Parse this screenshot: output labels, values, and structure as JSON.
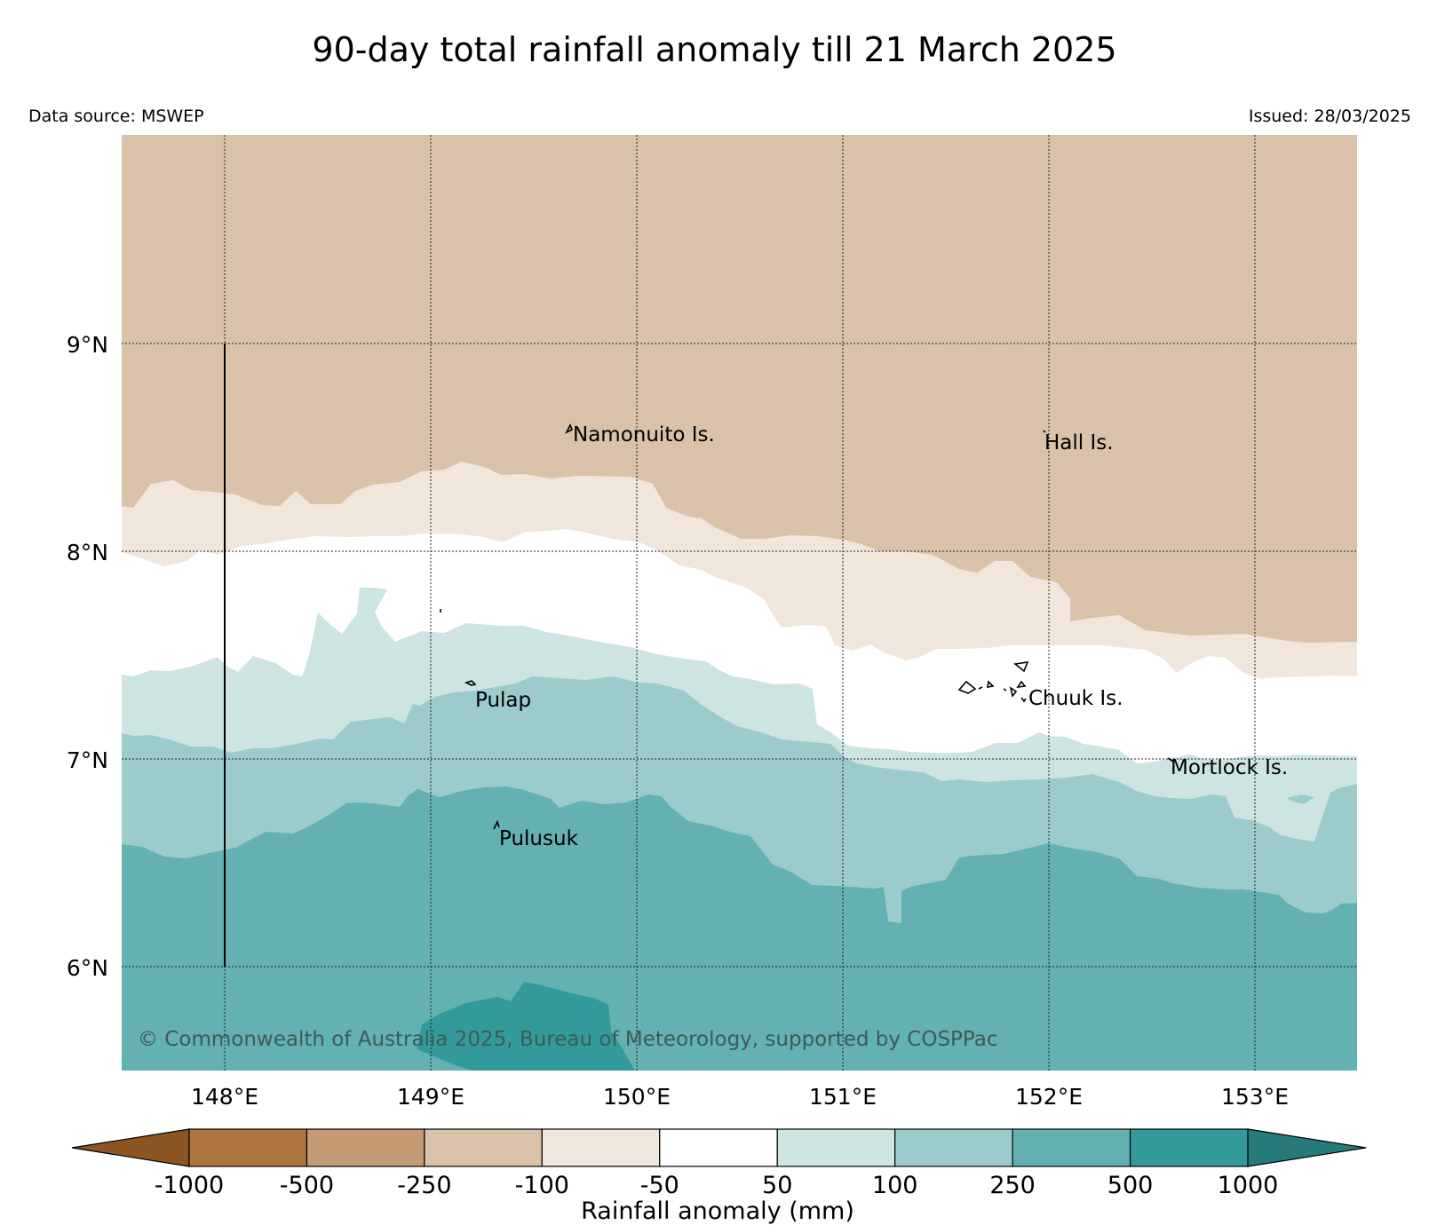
{
  "header": {
    "title": "90-day total rainfall anomaly till 21 March 2025",
    "data_source": "Data source: MSWEP",
    "issued": "Issued: 28/03/2025"
  },
  "map": {
    "lon_range": [
      147.5,
      153.5
    ],
    "lat_range": [
      5.5,
      10.0
    ],
    "gridlines": true,
    "lat_ticks": [
      {
        "value": 9,
        "label": "9°N"
      },
      {
        "value": 8,
        "label": "8°N"
      },
      {
        "value": 7,
        "label": "7°N"
      },
      {
        "value": 6,
        "label": "6°N"
      }
    ],
    "lon_ticks": [
      {
        "value": 148,
        "label": "148°E"
      },
      {
        "value": 149,
        "label": "149°E"
      },
      {
        "value": 150,
        "label": "150°E"
      },
      {
        "value": 151,
        "label": "151°E"
      },
      {
        "value": 152,
        "label": "152°E"
      },
      {
        "value": 153,
        "label": "153°E"
      }
    ],
    "places": [
      {
        "name": "Namonuito Is.",
        "lon": 149.7,
        "lat": 8.6
      },
      {
        "name": "Hall Is.",
        "lon": 151.98,
        "lat": 8.55
      },
      {
        "name": "Pulap",
        "lon": 149.2,
        "lat": 7.35
      },
      {
        "name": "Chuuk Is.",
        "lon": 151.85,
        "lat": 7.35
      },
      {
        "name": "Mortlock Is.",
        "lon": 152.6,
        "lat": 7.0
      },
      {
        "name": "Pulusuk",
        "lon": 149.4,
        "lat": 6.65
      }
    ],
    "copyright": "© Commonwealth of Australia 2025, Bureau of Meteorology, supported by COSPPac",
    "zones": [
      {
        "range": "-250 to -100",
        "color": "#d9c2a9"
      },
      {
        "range": "-100 to -50",
        "color": "#f0e6dc"
      },
      {
        "range": "-50 to 50",
        "color": "#ffffff"
      },
      {
        "range": "50 to 100",
        "color": "#cde4e3"
      },
      {
        "range": "100 to 250",
        "color": "#9ccbcb"
      },
      {
        "range": "250 to 500",
        "color": "#63b1b1"
      },
      {
        "range": "500 to 1000",
        "color": "#329a9a"
      }
    ]
  },
  "colorbar": {
    "label": "Rainfall anomaly (mm)",
    "ticks": [
      "-1000",
      "-500",
      "-250",
      "-100",
      "-50",
      "50",
      "100",
      "250",
      "500",
      "1000"
    ],
    "colors": [
      "#8b5524",
      "#ad763e",
      "#c39a72",
      "#d9c2a9",
      "#f0e6dc",
      "#ffffff",
      "#cde4e3",
      "#9ccbcb",
      "#63b1b1",
      "#329a9a",
      "#277a7a"
    ]
  }
}
